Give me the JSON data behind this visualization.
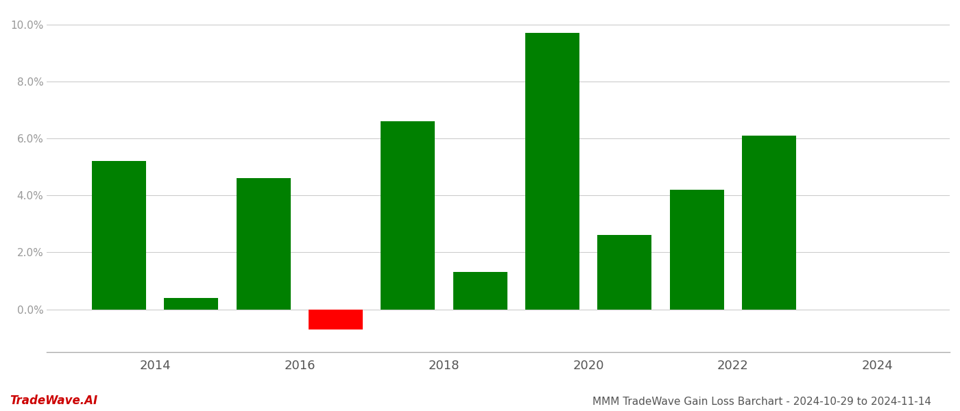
{
  "years": [
    2013,
    2014,
    2015,
    2016,
    2017,
    2018,
    2019,
    2020,
    2021,
    2022,
    2023
  ],
  "values": [
    0.052,
    0.004,
    0.046,
    -0.007,
    0.066,
    0.013,
    0.097,
    0.026,
    0.042,
    0.061,
    0.0
  ],
  "bar_colors": [
    "#008000",
    "#008000",
    "#008000",
    "#ff0000",
    "#008000",
    "#008000",
    "#008000",
    "#008000",
    "#008000",
    "#008000",
    "#008000"
  ],
  "title": "MMM TradeWave Gain Loss Barchart - 2024-10-29 to 2024-11-14",
  "watermark": "TradeWave.AI",
  "ylim": [
    -0.015,
    0.105
  ],
  "yticks": [
    0.0,
    0.02,
    0.04,
    0.06,
    0.08,
    0.1
  ],
  "xlim": [
    2012.5,
    2025.0
  ],
  "xticks": [
    2014,
    2016,
    2018,
    2020,
    2022,
    2024
  ],
  "background_color": "#ffffff",
  "grid_color": "#cccccc",
  "bar_width": 0.75
}
